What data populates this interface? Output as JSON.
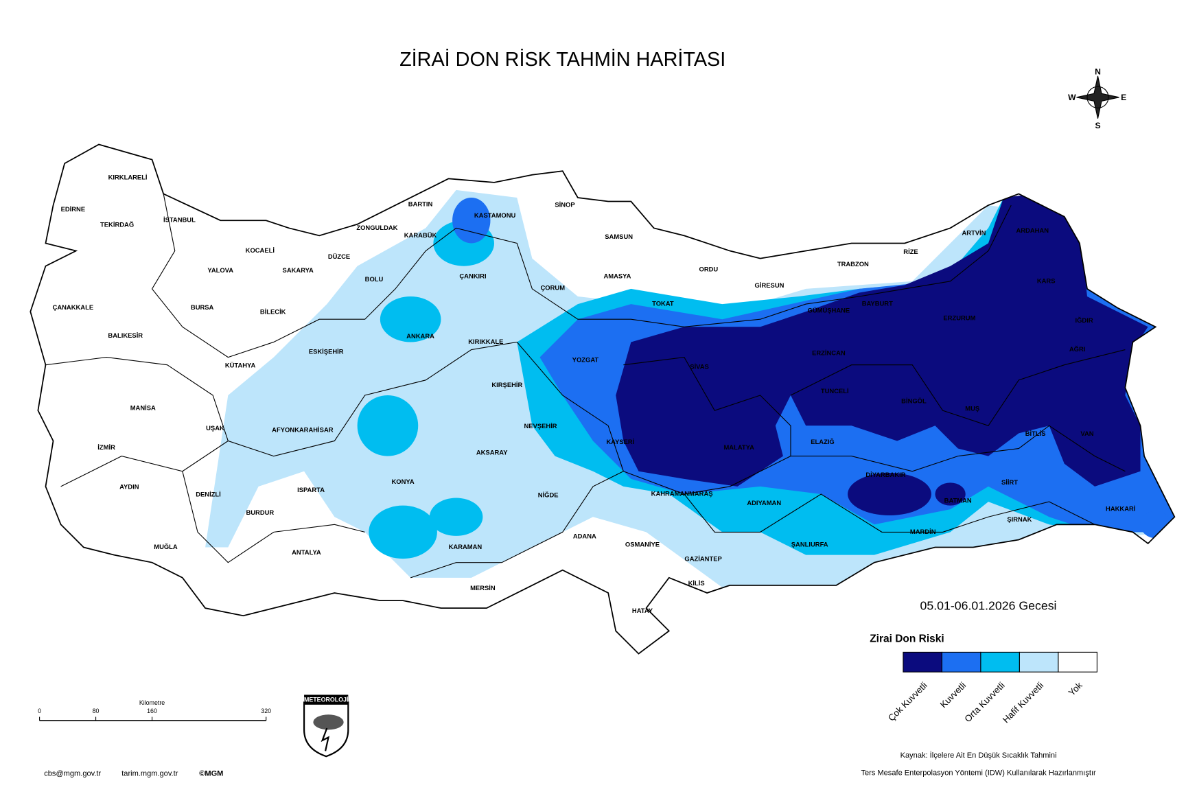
{
  "title": "ZİRAİ DON RİSK TAHMİN HARİTASI",
  "compass": {
    "n": "N",
    "w": "W",
    "e": "E",
    "s": "S"
  },
  "provinces": [
    "KIRKLARELİ",
    "EDİRNE",
    "TEKİRDAĞ",
    "İSTANBUL",
    "KOCAELİ",
    "YALOVA",
    "SAKARYA",
    "DÜZCE",
    "ZONGULDAK",
    "BARTIN",
    "KARABÜK",
    "KASTAMONU",
    "SİNOP",
    "SAMSUN",
    "BOLU",
    "ÇANKIRI",
    "ÇORUM",
    "AMASYA",
    "ORDU",
    "GİRESUN",
    "TRABZON",
    "RİZE",
    "ARTVİN",
    "ARDAHAN",
    "KARS",
    "IĞDIR",
    "AĞRI",
    "ERZURUM",
    "BAYBURT",
    "GÜMÜŞHANE",
    "TOKAT",
    "ERZİNCAN",
    "SİVAS",
    "YOZGAT",
    "KIRIKKALE",
    "ANKARA",
    "ÇANAKKALE",
    "BALIKESİR",
    "BURSA",
    "BİLECİK",
    "ESKİŞEHİR",
    "KÜTAHYA",
    "KIRŞEHİR",
    "TUNCELİ",
    "BİNGÖL",
    "MUŞ",
    "BİTLİS",
    "VAN",
    "MANİSA",
    "UŞAK",
    "AFYONKARAHİSAR",
    "NEVŞEHİR",
    "KAYSERİ",
    "MALATYA",
    "ELAZIĞ",
    "İZMİR",
    "AKSARAY",
    "DİYARBAKIR",
    "SİİRT",
    "AYDIN",
    "DENİZLİ",
    "ISPARTA",
    "KONYA",
    "NİĞDE",
    "KAHRAMANMARAŞ",
    "ADIYAMAN",
    "BATMAN",
    "HAKKARİ",
    "ŞIRNAK",
    "BURDUR",
    "MARDİN",
    "ADANA",
    "OSMANİYE",
    "ŞANLIURFA",
    "MUĞLA",
    "ANTALYA",
    "KARAMAN",
    "GAZİANTEP",
    "KİLİS",
    "MERSİN",
    "HATAY"
  ],
  "date": "05.01-06.01.2026 Gecesi",
  "legend": {
    "title": "Zirai Don Riski",
    "items": [
      {
        "label": "Çok Kuvvetli",
        "color": "#0b0b7e"
      },
      {
        "label": "Kuvvetli",
        "color": "#1c6ff2"
      },
      {
        "label": "Orta Kuvvetli",
        "color": "#00bdf0"
      },
      {
        "label": "Hafif Kuvvetli",
        "color": "#bde5fb"
      },
      {
        "label": "Yok",
        "color": "#ffffff"
      }
    ]
  },
  "scale_bar": {
    "unit": "Kilometre",
    "ticks": [
      "0",
      "80",
      "160",
      "320"
    ]
  },
  "logo": "METEOROLOJİ",
  "footer": [
    "cbs@mgm.gov.tr",
    "tarim.mgm.gov.tr",
    "©MGM"
  ],
  "source": [
    "Kaynak: İlçelere Ait En Düşük Sıcaklık Tahmini",
    "Ters Mesafe Enterpolasyon Yöntemi (IDW) Kullanılarak Hazırlanmıştır"
  ]
}
